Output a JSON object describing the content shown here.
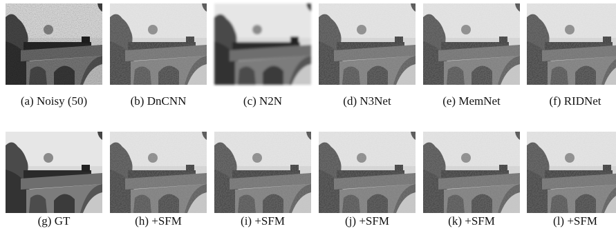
{
  "figure": {
    "panels": [
      "(a) Noisy (50)",
      "(b) DnCNN",
      "(c) N2N",
      "(d) N3Net",
      "(e) MemNet",
      "(f) RIDNet",
      "(g) GT",
      "(h) +SFM",
      "(i) +SFM",
      "(j) +SFM",
      "(k) +SFM",
      "(l) +SFM"
    ]
  }
}
